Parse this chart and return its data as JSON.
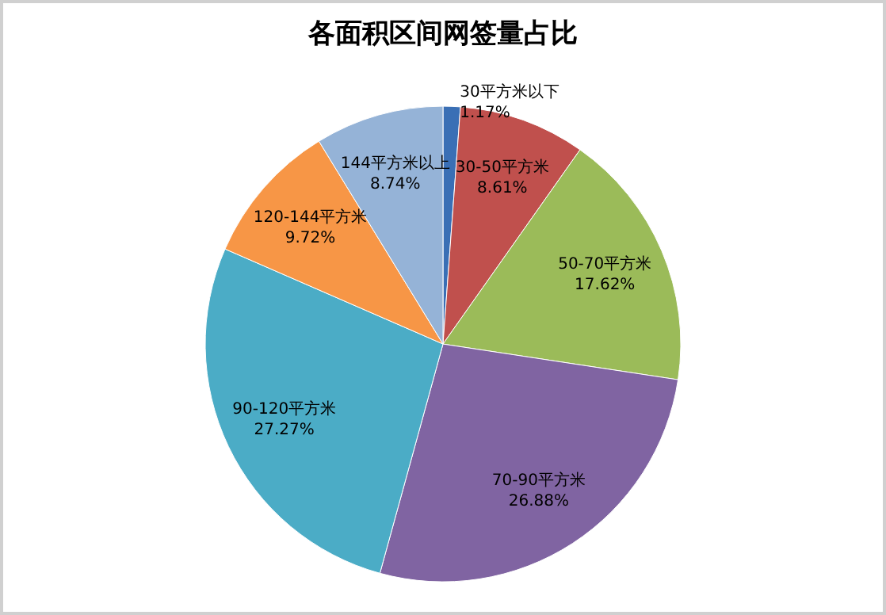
{
  "chart_data": {
    "type": "pie",
    "title": "各面积区间网签量占比",
    "categories": [
      "30平方米以下",
      "30-50平方米",
      "50-70平方米",
      "70-90平方米",
      "90-120平方米",
      "120-144平方米",
      "144平方米以上"
    ],
    "values": [
      1.17,
      8.61,
      17.62,
      26.88,
      27.27,
      9.72,
      8.74
    ],
    "value_labels": [
      "1.17%",
      "8.61%",
      "17.62%",
      "26.88%",
      "27.27%",
      "9.72%",
      "8.74%"
    ],
    "colors": [
      "#3a6fb5",
      "#c0504d",
      "#9bbb59",
      "#8064a2",
      "#4bacc6",
      "#f79646",
      "#95b3d7"
    ],
    "legend": false
  }
}
